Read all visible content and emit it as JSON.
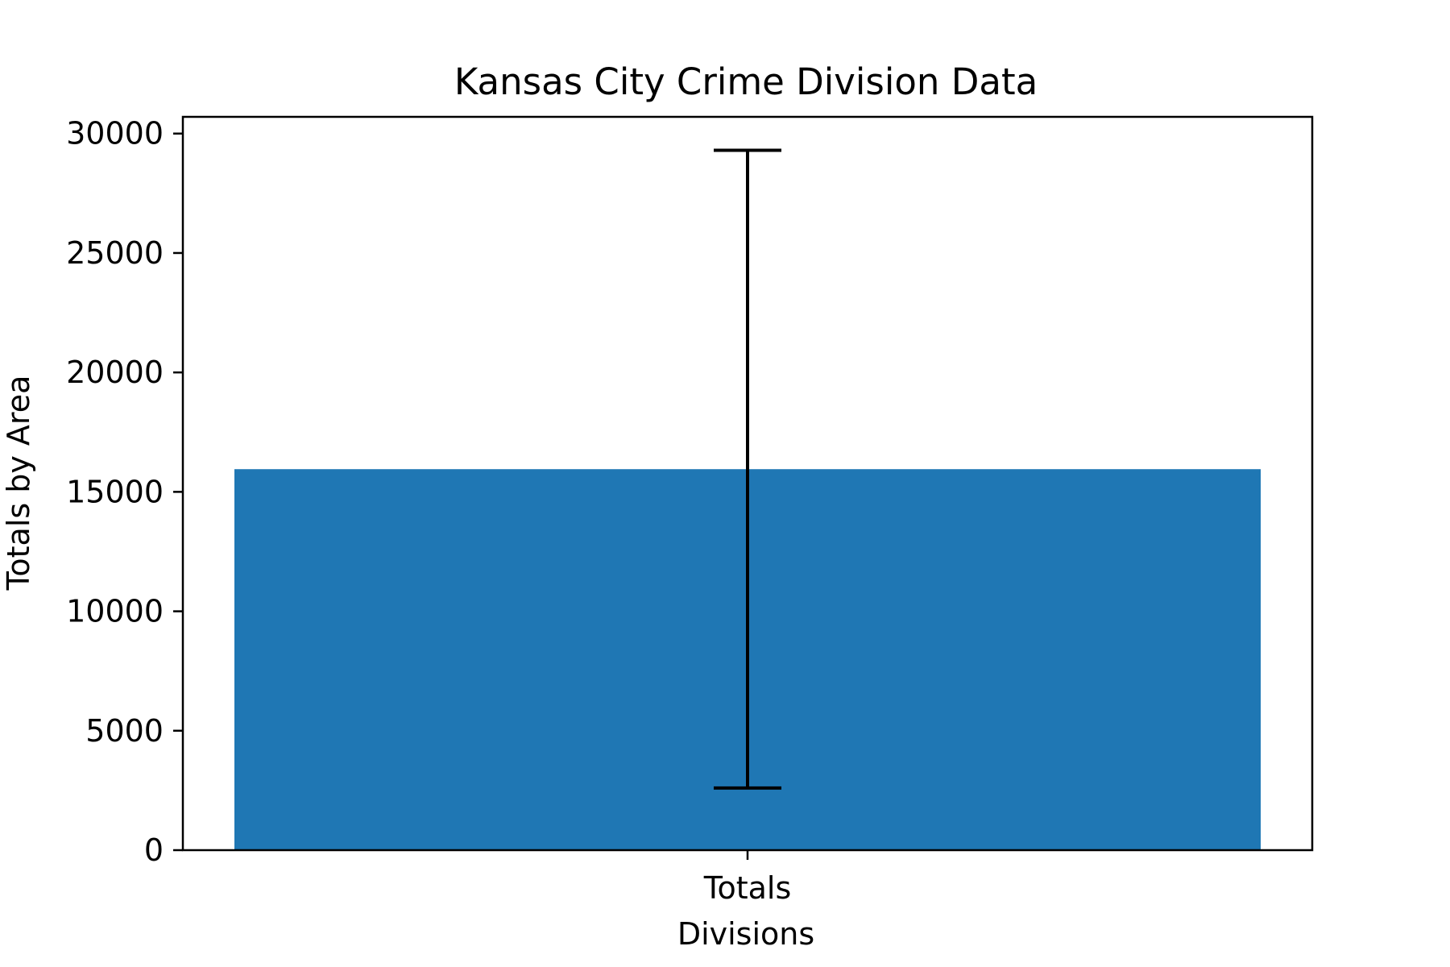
{
  "chart_data": {
    "type": "bar",
    "title": "Kansas City Crime Division Data",
    "xlabel": "Divisions",
    "ylabel": "Totals by Area",
    "categories": [
      "Totals"
    ],
    "values": [
      15950
    ],
    "error": {
      "lower": [
        2600
      ],
      "upper": [
        29300
      ]
    },
    "ylim": [
      0,
      30700
    ],
    "yticks": [
      0,
      5000,
      10000,
      15000,
      20000,
      25000,
      30000
    ],
    "ytick_labels": [
      "0",
      "5000",
      "10000",
      "15000",
      "20000",
      "25000",
      "30000"
    ],
    "grid": false,
    "legend": "none",
    "colors": {
      "bar": "#1f77b4",
      "error_bar": "#000000",
      "axes": "#000000"
    }
  }
}
